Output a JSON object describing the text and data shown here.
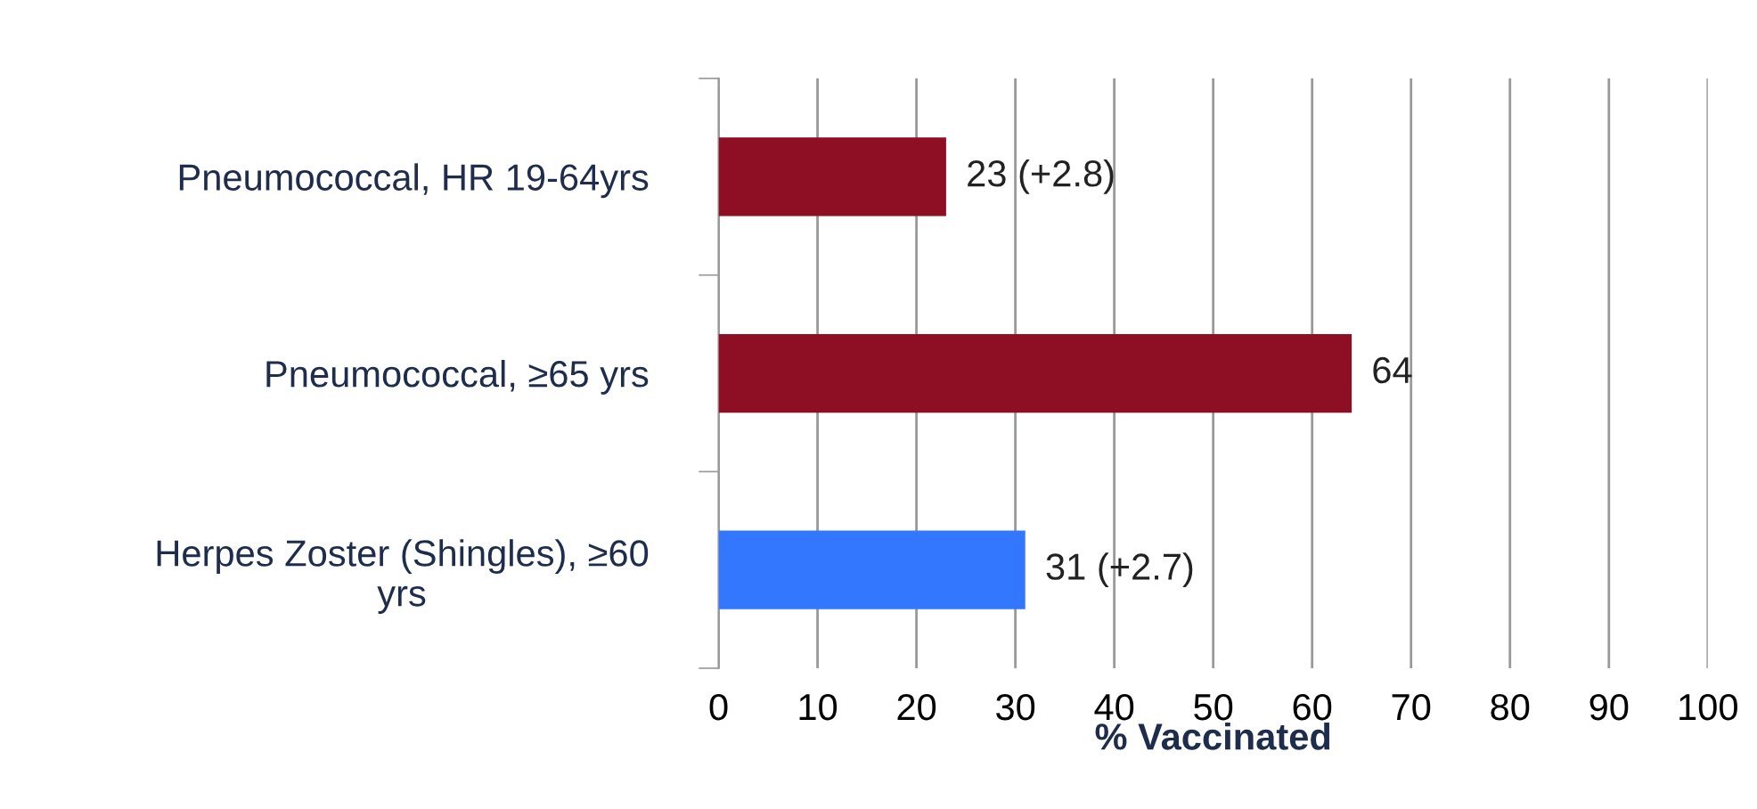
{
  "chart_data": {
    "type": "bar",
    "orientation": "horizontal",
    "categories": [
      "Pneumococcal, HR 19-64yrs",
      "Pneumococcal, ≥65 yrs",
      "Herpes Zoster (Shingles), ≥60\nyrs"
    ],
    "values": [
      23,
      64,
      31
    ],
    "colors": [
      "#8e0f23",
      "#8e0f23",
      "#3377ff"
    ],
    "value_labels": [
      "23 (+2.8)",
      "64",
      "31 (+2.7)"
    ],
    "xlabel": "% Vaccinated",
    "xlim": [
      0,
      100
    ],
    "xticks": [
      0,
      10,
      20,
      30,
      40,
      50,
      60,
      70,
      80,
      90,
      100
    ],
    "grid": "x",
    "legend": false
  }
}
